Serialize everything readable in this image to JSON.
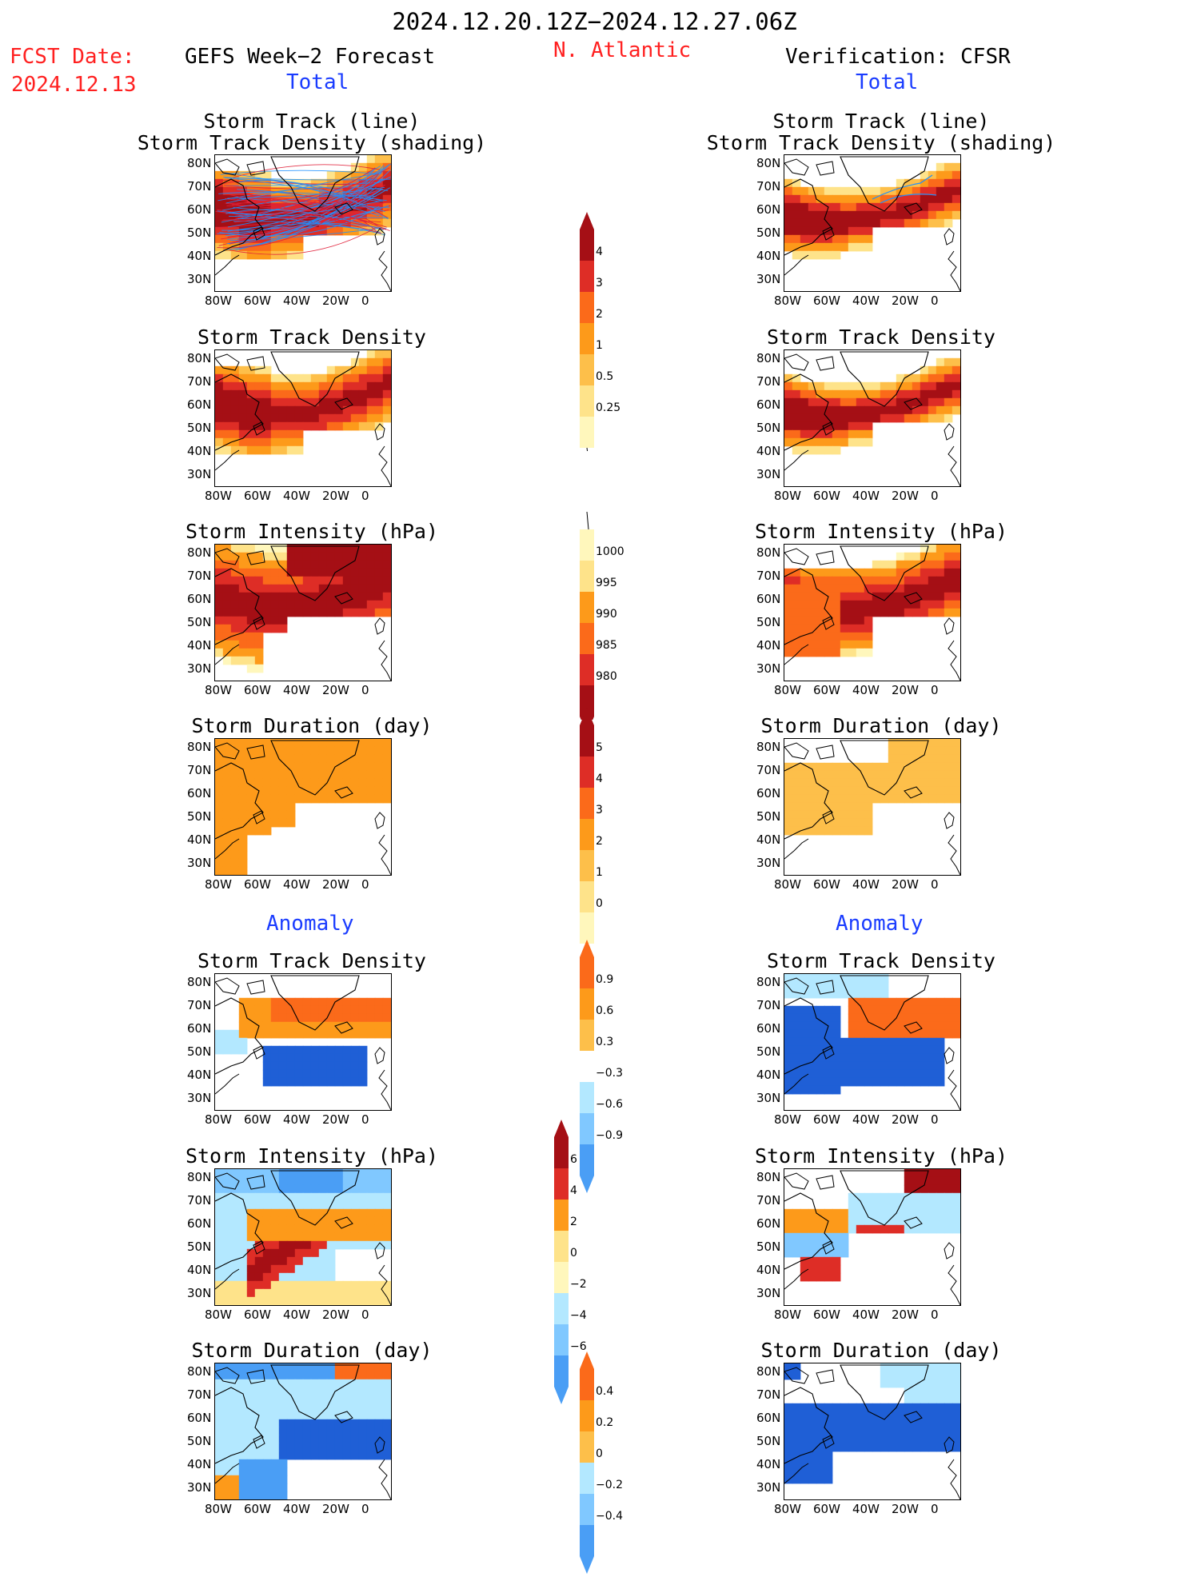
{
  "header": {
    "date_range": "2024.12.20.12Z−2024.12.27.06Z",
    "fcst_label": "FCST Date:",
    "fcst_date": "2024.12.13",
    "left_title": "GEFS Week−2 Forecast",
    "region": "N. Atlantic",
    "right_title": "Verification: CFSR",
    "total_label": "Total",
    "anomaly_label": "Anomaly"
  },
  "panel_titles": {
    "track_line": "Storm Track (line)",
    "track_shading": "Storm Track Density (shading)",
    "density": "Storm Track Density",
    "intensity": "Storm Intensity (hPa)",
    "duration": "Storm Duration (day)"
  },
  "axes": {
    "lat": [
      "80N",
      "70N",
      "60N",
      "50N",
      "40N",
      "30N"
    ],
    "lon": [
      "80W",
      "60W",
      "40W",
      "20W",
      "0"
    ]
  },
  "colorbars": {
    "density_total": [
      "4",
      "3",
      "2",
      "1",
      "0.5",
      "0.25"
    ],
    "intensity_total": [
      "1000",
      "995",
      "990",
      "985",
      "980"
    ],
    "duration_total": [
      "5",
      "4",
      "3",
      "2",
      "1",
      "0"
    ],
    "density_anom": [
      "0.9",
      "0.6",
      "0.3",
      "−0.3",
      "−0.6",
      "−0.9"
    ],
    "intensity_anom": [
      "6",
      "4",
      "2",
      "0",
      "−2",
      "−4",
      "−6"
    ],
    "duration_anom": [
      "0.4",
      "0.2",
      "0",
      "−0.2",
      "−0.4"
    ]
  },
  "colors": {
    "dark_red": "#a50f15",
    "red": "#de2d26",
    "orange_red": "#fb6a1a",
    "orange": "#fd9a1a",
    "light_orange": "#fdbf4a",
    "yellow": "#fee38a",
    "pale_yellow": "#fff7bc",
    "light_blue": "#b3e8ff",
    "sky_blue": "#80c8ff",
    "mid_blue": "#4a9ef5",
    "blue": "#1f5fd6",
    "track_blue": "#1e90ff",
    "track_red": "#e0203a"
  }
}
